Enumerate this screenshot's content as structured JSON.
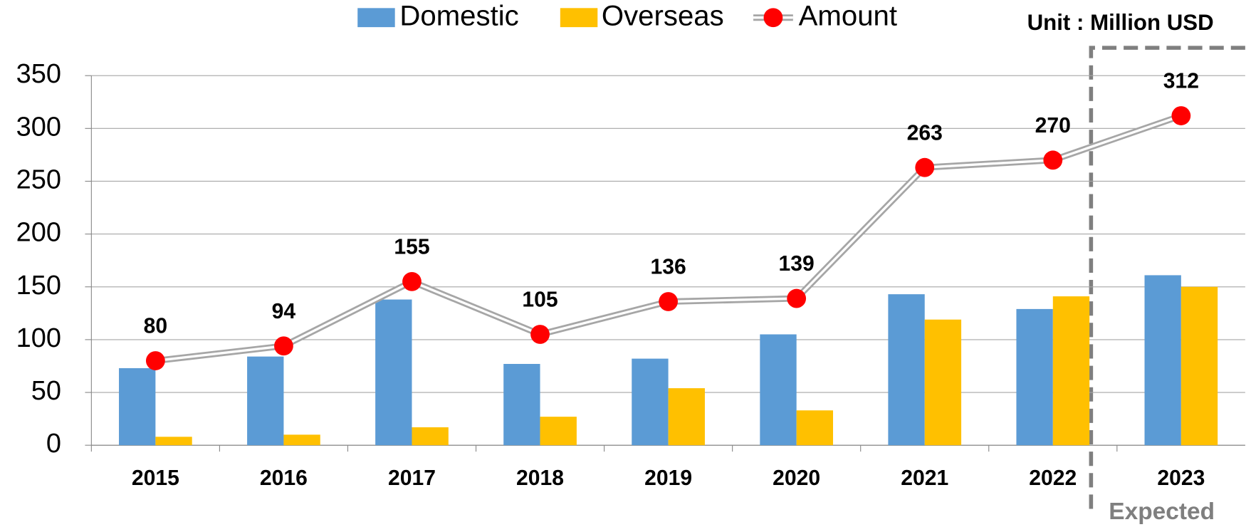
{
  "chart_data": {
    "type": "bar",
    "categories": [
      "2015",
      "2016",
      "2017",
      "2018",
      "2019",
      "2020",
      "2021",
      "2022",
      "2023"
    ],
    "series": [
      {
        "name": "Domestic",
        "type": "bar",
        "color": "#5b9bd5",
        "values": [
          73,
          84,
          138,
          77,
          82,
          105,
          143,
          129,
          161
        ]
      },
      {
        "name": "Overseas",
        "type": "bar",
        "color": "#ffc000",
        "values": [
          8,
          10,
          17,
          27,
          54,
          33,
          119,
          141,
          150
        ]
      },
      {
        "name": "Amount",
        "type": "line",
        "color": "#a6a6a6",
        "marker_color": "#ff0000",
        "values": [
          80,
          94,
          155,
          105,
          136,
          139,
          263,
          270,
          312
        ]
      }
    ],
    "ylim": [
      0,
      350
    ],
    "yticks": [
      0,
      50,
      100,
      150,
      200,
      250,
      300,
      350
    ],
    "grid": true,
    "legend": "top",
    "annotations": [
      "Unit : Million USD",
      "Expected"
    ]
  }
}
